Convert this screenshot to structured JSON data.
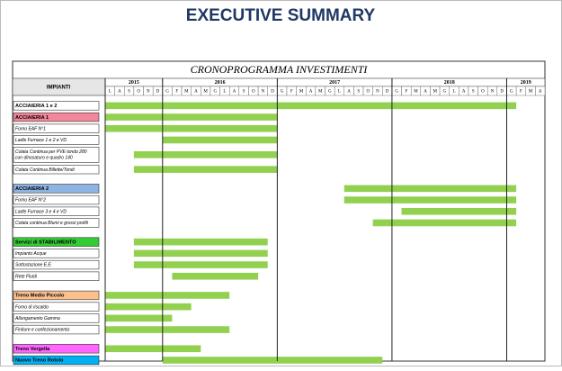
{
  "header": {
    "title": "EXECUTIVE SUMMARY"
  },
  "chart_data": {
    "type": "gantt",
    "title": "CRONOPROGRAMMA INVESTIMENTI",
    "label_header": "IMPIANTI",
    "years": [
      "2015",
      "2016",
      "2017",
      "2018",
      "2019"
    ],
    "categories": [
      "L",
      "A",
      "S",
      "O",
      "N",
      "D",
      "G",
      "F",
      "M",
      "A",
      "M",
      "G",
      "L",
      "A",
      "S",
      "O",
      "N",
      "D",
      "G",
      "F",
      "M",
      "A",
      "M",
      "G",
      "L",
      "A",
      "S",
      "O",
      "N",
      "D",
      "G",
      "F",
      "M",
      "A",
      "M",
      "G",
      "L",
      "A",
      "S",
      "O",
      "N",
      "D",
      "G",
      "F",
      "M",
      "A"
    ],
    "bar_color": "#92d050",
    "groups": [
      {
        "rows": [
          {
            "label": "ACCIAIERIA 1 e 2",
            "header": true,
            "color": "#ffffff",
            "start": 0,
            "end": 43
          },
          {
            "label": "ACCIAIERIA 1",
            "header": true,
            "color": "#f2879b",
            "start": 0,
            "end": 18
          },
          {
            "label": "Forno EAF N°1",
            "start": 0,
            "end": 18
          },
          {
            "label": "Ladle Furnace 1 e 2 e VD",
            "start": 6,
            "end": 18
          },
          {
            "label": [
              "Colata Continua per PVE tondo 280",
              "con dinosaturo e quadro 140"
            ],
            "start": 3,
            "end": 18
          },
          {
            "label": "Colata Continua Billette/Tondi",
            "start": 3,
            "end": 18
          }
        ]
      },
      {
        "rows": [
          {
            "label": "ACCIAIERIA 2",
            "header": true,
            "color": "#8db4e2",
            "start": 25,
            "end": 43
          },
          {
            "label": "Forno EAF N°2",
            "start": 25,
            "end": 43
          },
          {
            "label": "Ladle Furnace 3 e 4 e VD",
            "start": 31,
            "end": 43
          },
          {
            "label": "Colata continua Blumi e grossi profili",
            "start": 28,
            "end": 43
          }
        ]
      },
      {
        "rows": [
          {
            "label": "Servizi di STABILIMENTO",
            "header": true,
            "color": "#33cc33",
            "start": 3,
            "end": 17
          },
          {
            "label": "Impianto Acque",
            "start": 3,
            "end": 17
          },
          {
            "label": "Sottostazione E.E.",
            "start": 3,
            "end": 17
          },
          {
            "label": "Rete Fluidi",
            "start": 7,
            "end": 16
          }
        ]
      },
      {
        "rows": [
          {
            "label": "Treno Medio Piccolo",
            "header": true,
            "color": "#fbc08e",
            "start": 0,
            "end": 13
          },
          {
            "label": "Forno di riscaldo",
            "start": 0,
            "end": 9
          },
          {
            "label": "Allungamento Gamma",
            "start": 0,
            "end": 7
          },
          {
            "label": "Finiture e confezionamento",
            "start": 0,
            "end": 13
          }
        ]
      },
      {
        "rows": [
          {
            "label": "Treno Vergella",
            "header": true,
            "color": "#ff66ff",
            "start": 0,
            "end": 10
          },
          {
            "label": "Nuovo Treno Rotolo",
            "header": true,
            "color": "#00b0f0",
            "start": 6,
            "end": 29
          }
        ]
      }
    ]
  }
}
